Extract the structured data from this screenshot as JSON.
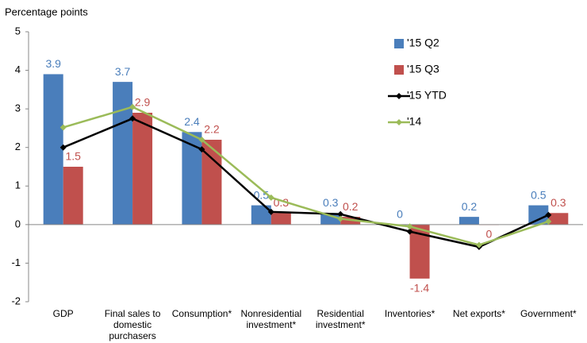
{
  "chart_data": {
    "type": "bar",
    "y_label": "Percentage points",
    "categories": [
      "GDP",
      "Final sales to domestic purchasers",
      "Consumption*",
      "Nonresidential investment*",
      "Residential investment*",
      "Inventories*",
      "Net exports*",
      "Government*"
    ],
    "series": [
      {
        "name": "'15 Q2",
        "type": "bar",
        "color": "#4a7ebb",
        "values": [
          3.9,
          3.7,
          2.4,
          0.5,
          0.3,
          0.0,
          0.2,
          0.5
        ]
      },
      {
        "name": "'15 Q3",
        "type": "bar",
        "color": "#c0504d",
        "values": [
          1.5,
          2.9,
          2.2,
          0.3,
          0.2,
          -1.4,
          0.0,
          0.3
        ]
      },
      {
        "name": "'15 YTD",
        "type": "line",
        "color": "#000000",
        "values": [
          2.0,
          2.75,
          1.95,
          0.33,
          0.27,
          -0.18,
          -0.58,
          0.25
        ]
      },
      {
        "name": "'14",
        "type": "line",
        "color": "#9bbb59",
        "values": [
          2.52,
          3.05,
          2.2,
          0.7,
          0.15,
          -0.05,
          -0.53,
          0.08
        ]
      }
    ],
    "ylim": [
      -2,
      5
    ],
    "yticks": [
      -2,
      -1,
      0,
      1,
      2,
      3,
      4,
      5
    ],
    "grid": false
  }
}
